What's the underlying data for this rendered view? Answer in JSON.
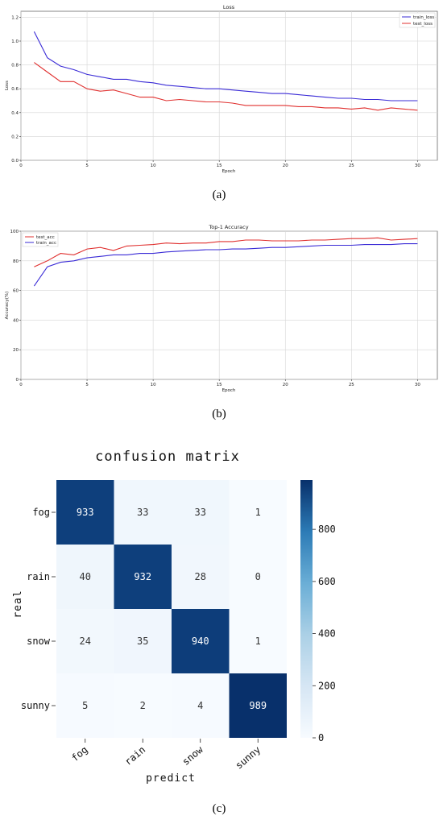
{
  "captions": {
    "a": "(a)",
    "b": "(b)",
    "c": "(c)"
  },
  "colors": {
    "train": "#3a2bd6",
    "test": "#e0302f",
    "grid": "#d6d6d6",
    "cmap_low": "#f7fbff",
    "cmap_high": "#08306b"
  },
  "chart_data": [
    {
      "type": "line",
      "title": "Loss",
      "xlabel": "Epoch",
      "ylabel": "Loss",
      "xlim": [
        0,
        31.5
      ],
      "ylim": [
        0,
        1.25
      ],
      "xticks": [
        0,
        5,
        10,
        15,
        20,
        25,
        30
      ],
      "yticks": [
        0.0,
        0.2,
        0.4,
        0.6,
        0.8,
        1.0,
        1.2
      ],
      "ytick_labels": [
        "0.0",
        "0.2",
        "0.4",
        "0.6",
        "0.8",
        "1.0",
        "1.2"
      ],
      "grid": true,
      "legend_position": "top-right",
      "x": [
        1,
        2,
        3,
        4,
        5,
        6,
        7,
        8,
        9,
        10,
        11,
        12,
        13,
        14,
        15,
        16,
        17,
        18,
        19,
        20,
        21,
        22,
        23,
        24,
        25,
        26,
        27,
        28,
        29,
        30
      ],
      "series": [
        {
          "name": "train_loss",
          "color": "#3a2bd6",
          "values": [
            1.08,
            0.86,
            0.79,
            0.76,
            0.72,
            0.7,
            0.68,
            0.68,
            0.66,
            0.65,
            0.63,
            0.62,
            0.61,
            0.6,
            0.6,
            0.59,
            0.58,
            0.57,
            0.56,
            0.56,
            0.55,
            0.54,
            0.53,
            0.52,
            0.52,
            0.51,
            0.51,
            0.5,
            0.5,
            0.5
          ]
        },
        {
          "name": "test_loss",
          "color": "#e0302f",
          "values": [
            0.82,
            0.74,
            0.66,
            0.66,
            0.6,
            0.58,
            0.59,
            0.56,
            0.53,
            0.53,
            0.5,
            0.51,
            0.5,
            0.49,
            0.49,
            0.48,
            0.46,
            0.46,
            0.46,
            0.46,
            0.45,
            0.45,
            0.44,
            0.44,
            0.43,
            0.44,
            0.42,
            0.44,
            0.43,
            0.42
          ]
        }
      ]
    },
    {
      "type": "line",
      "title": "Top-1 Accuracy",
      "xlabel": "Epoch",
      "ylabel": "Accuracy(%)",
      "xlim": [
        0,
        31.5
      ],
      "ylim": [
        0,
        100
      ],
      "xticks": [
        0,
        5,
        10,
        15,
        20,
        25,
        30
      ],
      "yticks": [
        0,
        20,
        40,
        60,
        80,
        100
      ],
      "ytick_labels": [
        "0",
        "20",
        "40",
        "60",
        "80",
        "100"
      ],
      "grid": true,
      "legend_position": "top-left",
      "x": [
        1,
        2,
        3,
        4,
        5,
        6,
        7,
        8,
        9,
        10,
        11,
        12,
        13,
        14,
        15,
        16,
        17,
        18,
        19,
        20,
        21,
        22,
        23,
        24,
        25,
        26,
        27,
        28,
        29,
        30
      ],
      "series": [
        {
          "name": "test_acc",
          "color": "#e0302f",
          "values": [
            76,
            80,
            85,
            84,
            88,
            89,
            87,
            90,
            90.5,
            91,
            92,
            91.5,
            92,
            92,
            93,
            93,
            94,
            94,
            93.5,
            93.5,
            93.5,
            94,
            94,
            94.5,
            95,
            95,
            95.5,
            94,
            94.5,
            95
          ]
        },
        {
          "name": "train_acc",
          "color": "#3a2bd6",
          "values": [
            63,
            76,
            79,
            80,
            82,
            83,
            84,
            84,
            85,
            85,
            86,
            86.5,
            87,
            87.5,
            87.5,
            88,
            88,
            88.5,
            89,
            89,
            89.5,
            90,
            90.5,
            90.5,
            90.5,
            91,
            91,
            91,
            91.5,
            91.5
          ]
        }
      ]
    },
    {
      "type": "heatmap",
      "title": "confusion matrix",
      "xlabel": "predict",
      "ylabel": "real",
      "x_categories": [
        "fog",
        "rain",
        "snow",
        "sunny"
      ],
      "y_categories": [
        "fog",
        "rain",
        "snow",
        "sunny"
      ],
      "values": [
        [
          933,
          33,
          33,
          1
        ],
        [
          40,
          932,
          28,
          0
        ],
        [
          24,
          35,
          940,
          1
        ],
        [
          5,
          2,
          4,
          989
        ]
      ],
      "value_labels": [
        [
          "933",
          "33",
          "33",
          "1"
        ],
        [
          "40",
          "932",
          "28",
          "0"
        ],
        [
          "24",
          "35",
          "940",
          "1"
        ],
        [
          "5",
          "2",
          "4",
          "989"
        ]
      ],
      "colorbar": {
        "min": 0,
        "max": 989,
        "ticks": [
          0,
          200,
          400,
          600,
          800
        ],
        "tick_labels": [
          "0",
          "200",
          "400",
          "600",
          "800"
        ]
      }
    }
  ]
}
